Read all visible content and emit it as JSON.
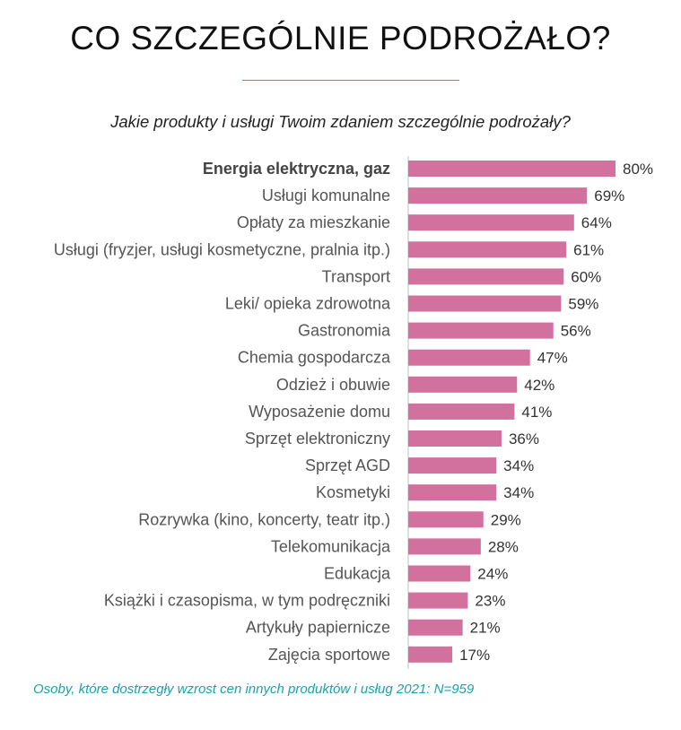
{
  "title": "CO SZCZEGÓLNIE PODROŻAŁO?",
  "subtitle": "Jakie produkty i usługi Twoim zdaniem szczególnie podrożały?",
  "footnote": "Osoby, które dostrzegły wzrost cen innych produktów i usług 2021: N=959",
  "colors": {
    "bar": "#d2709e",
    "axis": "#bfbfbf",
    "title_rule": "#5b8fc9",
    "footnote": "#1aa3a8"
  },
  "chart_data": {
    "type": "bar",
    "orientation": "horizontal",
    "categories": [
      "Energia elektryczna, gaz",
      "Usługi komunalne",
      "Opłaty za mieszkanie",
      "Usługi (fryzjer, usługi kosmetyczne, pralnia itp.)",
      "Transport",
      "Leki/ opieka zdrowotna",
      "Gastronomia",
      "Chemia gospodarcza",
      "Odzież i obuwie",
      "Wyposażenie domu",
      "Sprzęt elektroniczny",
      "Sprzęt AGD",
      "Kosmetyki",
      "Rozrywka (kino, koncerty, teatr itp.)",
      "Telekomunikacja",
      "Edukacja",
      "Książki i czasopisma, w tym podręczniki",
      "Artykuły papiernicze",
      "Zajęcia sportowe"
    ],
    "values": [
      80,
      69,
      64,
      61,
      60,
      59,
      56,
      47,
      42,
      41,
      36,
      34,
      34,
      29,
      28,
      24,
      23,
      21,
      17
    ],
    "value_labels": [
      "80%",
      "69%",
      "64%",
      "61%",
      "60%",
      "59%",
      "56%",
      "47%",
      "42%",
      "41%",
      "36%",
      "34%",
      "34%",
      "29%",
      "28%",
      "24%",
      "23%",
      "21%",
      "17%"
    ],
    "highlighted_category": "Energia elektryczna, gaz",
    "xlim": [
      0,
      80
    ],
    "grid": false,
    "legend": "none"
  }
}
